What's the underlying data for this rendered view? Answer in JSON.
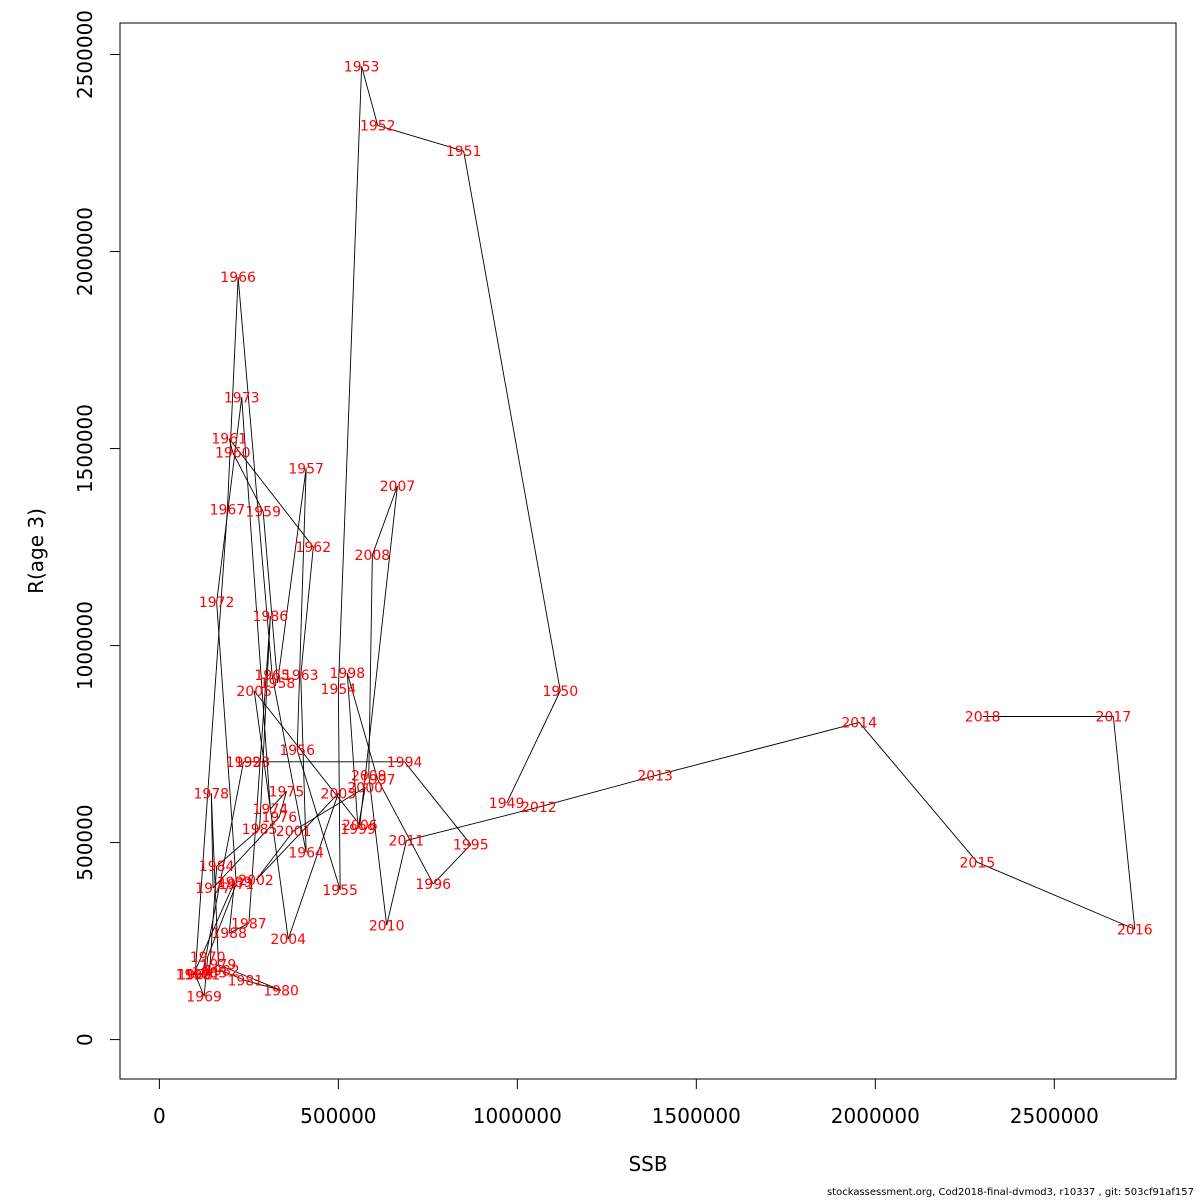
{
  "footer": "stockassessment.org, Cod2018-final-dvmod3, r10337 , git: 503cf91af157",
  "chart_data": {
    "type": "line",
    "title": "",
    "xlabel": "SSB",
    "ylabel": "R(age 3)",
    "xlim": [
      -110000,
      2840000
    ],
    "ylim": [
      -100000,
      2580000
    ],
    "xticks": [
      0,
      500000,
      1000000,
      1500000,
      2000000,
      2500000
    ],
    "yticks": [
      0,
      500000,
      1000000,
      1500000,
      2000000,
      2500000
    ],
    "grid": false,
    "label_color": "#ff0000",
    "line_color": "#000000",
    "points": [
      {
        "year": "1949",
        "x": 970000,
        "y": 600000
      },
      {
        "year": "1950",
        "x": 1120000,
        "y": 885000
      },
      {
        "year": "1951",
        "x": 850000,
        "y": 2255000
      },
      {
        "year": "1952",
        "x": 610000,
        "y": 2320000
      },
      {
        "year": "1953",
        "x": 565000,
        "y": 2470000
      },
      {
        "year": "1954",
        "x": 500000,
        "y": 890000
      },
      {
        "year": "1955",
        "x": 505000,
        "y": 380000
      },
      {
        "year": "1956",
        "x": 385000,
        "y": 735000
      },
      {
        "year": "1957",
        "x": 410000,
        "y": 1450000
      },
      {
        "year": "1958",
        "x": 330000,
        "y": 905000
      },
      {
        "year": "1959",
        "x": 290000,
        "y": 1340000
      },
      {
        "year": "1960",
        "x": 205000,
        "y": 1490000
      },
      {
        "year": "1961",
        "x": 195000,
        "y": 1525000
      },
      {
        "year": "1962",
        "x": 430000,
        "y": 1250000
      },
      {
        "year": "1963",
        "x": 395000,
        "y": 925000
      },
      {
        "year": "1964",
        "x": 410000,
        "y": 475000
      },
      {
        "year": "1965",
        "x": 315000,
        "y": 925000
      },
      {
        "year": "1966",
        "x": 220000,
        "y": 1935000
      },
      {
        "year": "1967",
        "x": 190000,
        "y": 1345000
      },
      {
        "year": "1968",
        "x": 100000,
        "y": 165000
      },
      {
        "year": "1969",
        "x": 125000,
        "y": 110000
      },
      {
        "year": "1970",
        "x": 135000,
        "y": 210000
      },
      {
        "year": "1971",
        "x": 215000,
        "y": 395000
      },
      {
        "year": "1972",
        "x": 160000,
        "y": 1110000
      },
      {
        "year": "1973",
        "x": 230000,
        "y": 1630000
      },
      {
        "year": "1974",
        "x": 310000,
        "y": 585000
      },
      {
        "year": "1975",
        "x": 355000,
        "y": 630000
      },
      {
        "year": "1976",
        "x": 335000,
        "y": 565000
      },
      {
        "year": "1977",
        "x": 150000,
        "y": 385000
      },
      {
        "year": "1978",
        "x": 145000,
        "y": 625000
      },
      {
        "year": "1979",
        "x": 165000,
        "y": 190000
      },
      {
        "year": "1980",
        "x": 340000,
        "y": 125000
      },
      {
        "year": "1981",
        "x": 240000,
        "y": 150000
      },
      {
        "year": "1982",
        "x": 175000,
        "y": 175000
      },
      {
        "year": "1983",
        "x": 140000,
        "y": 170000
      },
      {
        "year": "1984",
        "x": 160000,
        "y": 440000
      },
      {
        "year": "1985",
        "x": 280000,
        "y": 535000
      },
      {
        "year": "1986",
        "x": 310000,
        "y": 1075000
      },
      {
        "year": "1987",
        "x": 250000,
        "y": 295000
      },
      {
        "year": "1988",
        "x": 195000,
        "y": 270000
      },
      {
        "year": "1989",
        "x": 210000,
        "y": 400000
      },
      {
        "year": "1990",
        "x": 95000,
        "y": 165000
      },
      {
        "year": "1991",
        "x": 120000,
        "y": 165000
      },
      {
        "year": "1992",
        "x": 235000,
        "y": 705000
      },
      {
        "year": "1993",
        "x": 260000,
        "y": 705000
      },
      {
        "year": "1994",
        "x": 685000,
        "y": 705000
      },
      {
        "year": "1995",
        "x": 870000,
        "y": 495000
      },
      {
        "year": "1996",
        "x": 765000,
        "y": 395000
      },
      {
        "year": "1997",
        "x": 610000,
        "y": 660000
      },
      {
        "year": "1998",
        "x": 525000,
        "y": 930000
      },
      {
        "year": "1999",
        "x": 555000,
        "y": 535000
      },
      {
        "year": "2000",
        "x": 575000,
        "y": 640000
      },
      {
        "year": "2001",
        "x": 375000,
        "y": 530000
      },
      {
        "year": "2002",
        "x": 270000,
        "y": 405000
      },
      {
        "year": "2003",
        "x": 500000,
        "y": 625000
      },
      {
        "year": "2004",
        "x": 360000,
        "y": 255000
      },
      {
        "year": "2005",
        "x": 265000,
        "y": 885000
      },
      {
        "year": "2006",
        "x": 560000,
        "y": 545000
      },
      {
        "year": "2007",
        "x": 665000,
        "y": 1405000
      },
      {
        "year": "2008",
        "x": 595000,
        "y": 1230000
      },
      {
        "year": "2009",
        "x": 585000,
        "y": 670000
      },
      {
        "year": "2010",
        "x": 635000,
        "y": 290000
      },
      {
        "year": "2011",
        "x": 690000,
        "y": 505000
      },
      {
        "year": "2012",
        "x": 1060000,
        "y": 590000
      },
      {
        "year": "2013",
        "x": 1385000,
        "y": 670000
      },
      {
        "year": "2014",
        "x": 1955000,
        "y": 805000
      },
      {
        "year": "2015",
        "x": 2285000,
        "y": 450000
      },
      {
        "year": "2016",
        "x": 2725000,
        "y": 280000
      },
      {
        "year": "2017",
        "x": 2665000,
        "y": 820000
      },
      {
        "year": "2018",
        "x": 2300000,
        "y": 820000
      }
    ]
  }
}
